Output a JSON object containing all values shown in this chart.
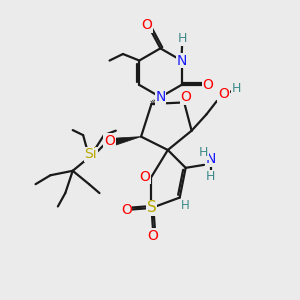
{
  "background_color": "#ebebeb",
  "bond_color": "#1a1a1a",
  "bond_width": 1.6,
  "colors": {
    "N": "#1a1aff",
    "O": "#ff0000",
    "S": "#b8a800",
    "Si": "#b8a800",
    "C": "#1a1a1a",
    "H": "#3d8a8a",
    "NH": "#3d8a8a",
    "OH": "#3d8a8a"
  },
  "figsize": [
    3.0,
    3.0
  ],
  "dpi": 100
}
